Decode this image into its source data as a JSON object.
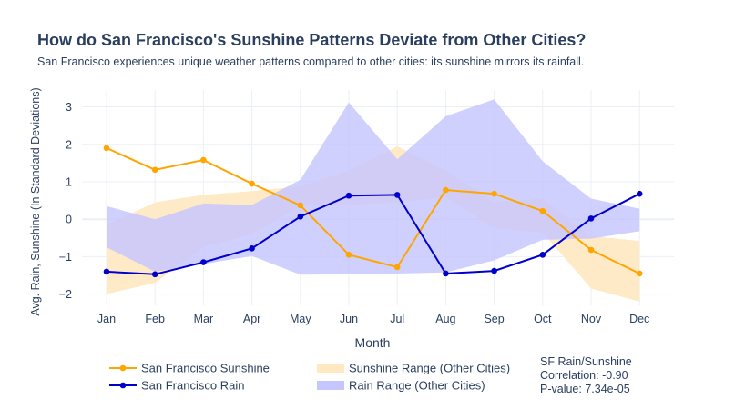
{
  "title": "How do San Francisco's Sunshine Patterns Deviate from Other Cities?",
  "subtitle": "San Francisco experiences unique weather patterns compared to other cities: its sunshine mirrors its rainfall.",
  "colors": {
    "sunshine": "#ffa500",
    "rain": "#0000cd",
    "sunshine_band": "#ffe8c2",
    "rain_band": "#c6c6ff",
    "grid": "#ebeff5",
    "text": "#2a3f5f"
  },
  "chart_data": {
    "type": "line",
    "title": "How do San Francisco's Sunshine Patterns Deviate from Other Cities?",
    "xlabel": "Month",
    "ylabel": "Avg. Rain, Sunshine (In Standard Deviations)",
    "categories": [
      "Jan",
      "Feb",
      "Mar",
      "Apr",
      "May",
      "Jun",
      "Jul",
      "Aug",
      "Sep",
      "Oct",
      "Nov",
      "Dec"
    ],
    "ylim": [
      -2.3,
      3.45
    ],
    "yticks": [
      -2,
      -1,
      0,
      1,
      2,
      3
    ],
    "ytick_labels": [
      "−2",
      "−1",
      "0",
      "1",
      "2",
      "3"
    ],
    "grid": true,
    "legend_position": "bottom",
    "series": [
      {
        "name": "San Francisco Sunshine",
        "kind": "line",
        "color": "#ffa500",
        "values": [
          1.9,
          1.32,
          1.58,
          0.95,
          0.37,
          -0.95,
          -1.28,
          0.78,
          0.68,
          0.22,
          -0.82,
          -1.45
        ]
      },
      {
        "name": "San Francisco Rain",
        "kind": "line",
        "color": "#0000cd",
        "values": [
          -1.4,
          -1.47,
          -1.15,
          -0.78,
          0.07,
          0.63,
          0.65,
          -1.45,
          -1.38,
          -0.95,
          0.02,
          0.68
        ]
      },
      {
        "name": "Sunshine Range (Other Cities)",
        "kind": "band",
        "color": "#ffe8c2",
        "upper": [
          -0.15,
          0.45,
          0.65,
          0.75,
          0.88,
          1.3,
          1.95,
          1.3,
          0.45,
          0.55,
          -0.45,
          -0.58
        ],
        "lower": [
          -2.0,
          -1.7,
          -0.75,
          -0.4,
          0.35,
          0.38,
          0.45,
          0.6,
          -0.25,
          -0.35,
          -1.85,
          -2.2
        ]
      },
      {
        "name": "Rain Range (Other Cities)",
        "kind": "band",
        "color": "#c6c6ff",
        "upper": [
          0.35,
          0.0,
          0.42,
          0.38,
          1.05,
          3.12,
          1.6,
          2.75,
          3.2,
          1.55,
          0.55,
          0.28
        ],
        "lower": [
          -0.75,
          -1.4,
          -1.2,
          -0.98,
          -1.48,
          -1.47,
          -1.45,
          -1.42,
          -1.1,
          -0.55,
          -0.52,
          -0.32
        ]
      }
    ],
    "annotation": {
      "lines": [
        "SF Rain/Sunshine",
        "Correlation: -0.90",
        "P-value: 7.34e-05"
      ]
    }
  },
  "legend": {
    "items": [
      {
        "label": "San Francisco Sunshine",
        "kind": "line",
        "color": "#ffa500"
      },
      {
        "label": "San Francisco Rain",
        "kind": "line",
        "color": "#0000cd"
      },
      {
        "label": "Sunshine Range (Other Cities)",
        "kind": "band",
        "color": "#ffe8c2"
      },
      {
        "label": "Rain Range (Other Cities)",
        "kind": "band",
        "color": "#c6c6ff"
      }
    ]
  }
}
